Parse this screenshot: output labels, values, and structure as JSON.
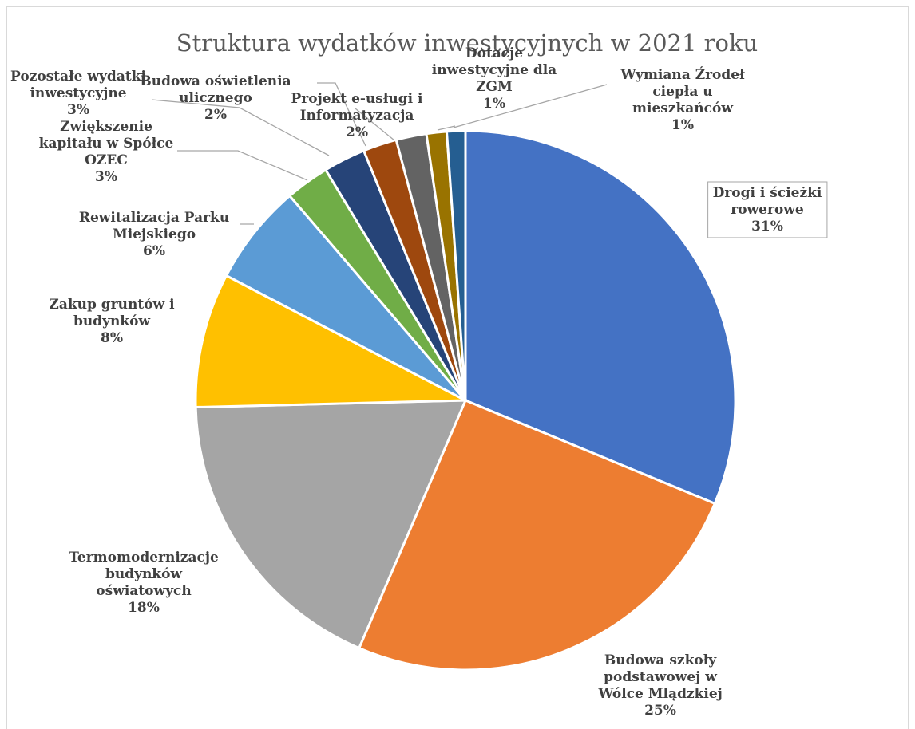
{
  "chart_data": {
    "type": "pie",
    "title": "Struktura wydatków inwestycyjnych w 2021 roku",
    "slices": [
      {
        "label": "Drogi i ścieżki rowerowe",
        "value": 31,
        "percent": "31%",
        "color": "#4472c4"
      },
      {
        "label": "Budowa szkoły podstawowej w Wólce Mlądzkiej",
        "value": 25,
        "percent": "25%",
        "color": "#ed7d31"
      },
      {
        "label": "Termomodernizacje budynków oświatowych",
        "value": 18,
        "percent": "18%",
        "color": "#a5a5a5"
      },
      {
        "label": "Zakup gruntów i budynków",
        "value": 8,
        "percent": "8%",
        "color": "#ffc000"
      },
      {
        "label": "Rewitalizacja Parku Miejskiego",
        "value": 6,
        "percent": "6%",
        "color": "#5b9bd5"
      },
      {
        "label": "Zwiększenie kapitału w Spółce OZEC",
        "value": 2.6,
        "percent": "3%",
        "color": "#70ad47"
      },
      {
        "label": "Pozostałe wydatki inwestycyjne",
        "value": 2.5,
        "percent": "3%",
        "color": "#264478"
      },
      {
        "label": "Budowa oświetlenia ulicznego",
        "value": 2,
        "percent": "2%",
        "color": "#9e480e"
      },
      {
        "label": "Projekt e-usługi i Informatyzacja",
        "value": 1.8,
        "percent": "2%",
        "color": "#636363"
      },
      {
        "label": "Dotacje inwestycyjne dla ZGM",
        "value": 1.2,
        "percent": "1%",
        "color": "#997300"
      },
      {
        "label": "Wymiana Źrodeł ciepła u mieszkańców",
        "value": 1.1,
        "percent": "1%",
        "color": "#255e91"
      }
    ],
    "legend": "none",
    "start_angle": "12 o'clock, clockwise"
  }
}
